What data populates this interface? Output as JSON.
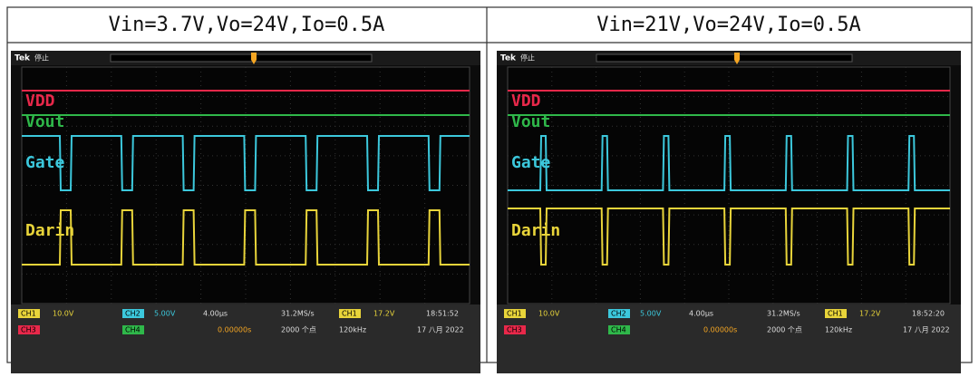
{
  "table": {
    "headers": [
      "Vin=3.7V,Vo=24V,Io=0.5A",
      "Vin=21V,Vo=24V,Io=0.5A"
    ]
  },
  "scopes": [
    {
      "brand": "Tek",
      "state": "停止",
      "traces": [
        "VDD",
        "Vout",
        "Gate",
        "Darin"
      ],
      "status": {
        "ch1": "CH1",
        "ch1_scale": "10.0V",
        "ch2": "CH2",
        "ch2_scale": "5.00V",
        "timebase": "4.00μs",
        "sample_rate": "31.2MS/s",
        "trigger_source": "CH1",
        "trigger_level": "17.2V",
        "time": "18:51:52",
        "ch3": "CH3",
        "ch4": "CH4",
        "delay": "0.00000s",
        "points": "2000 个点",
        "frequency": "120kHz",
        "date": "17 八月 2022"
      }
    },
    {
      "brand": "Tek",
      "state": "停止",
      "traces": [
        "VDD",
        "Vout",
        "Gate",
        "Darin"
      ],
      "status": {
        "ch1": "CH1",
        "ch1_scale": "10.0V",
        "ch2": "CH2",
        "ch2_scale": "5.00V",
        "timebase": "4.00μs",
        "sample_rate": "31.2MS/s",
        "trigger_source": "CH1",
        "trigger_level": "17.2V",
        "time": "18:52:20",
        "ch3": "CH3",
        "ch4": "CH4",
        "delay": "0.00000s",
        "points": "2000 个点",
        "frequency": "120kHz",
        "date": "17 八月 2022"
      }
    }
  ]
}
